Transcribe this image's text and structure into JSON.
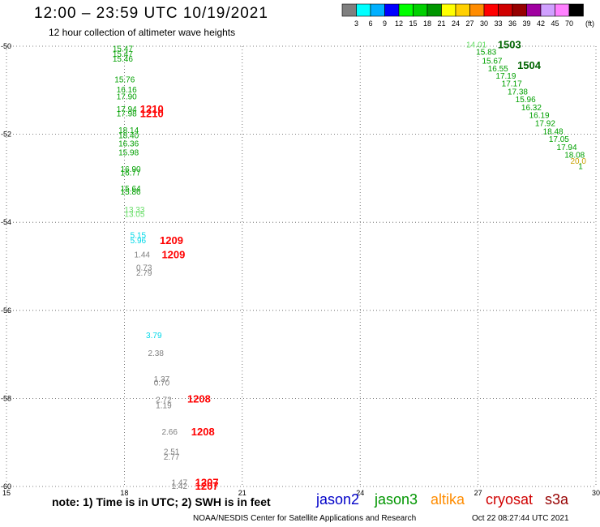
{
  "header": {
    "title": "12:00 – 23:59 UTC 10/19/2021",
    "subtitle": "12 hour collection of altimeter wave heights"
  },
  "legend": {
    "unit": "(ft)",
    "colors": [
      "#7f7f7f",
      "#00ffff",
      "#00b0ff",
      "#0000ff",
      "#00ff00",
      "#00d000",
      "#009600",
      "#ffff00",
      "#ffd000",
      "#ff8c00",
      "#ff0000",
      "#d00000",
      "#960000",
      "#a000a0",
      "#d0a0ff",
      "#ff80ff",
      "#000000"
    ],
    "labels": [
      "3",
      "6",
      "9",
      "12",
      "15",
      "18",
      "21",
      "24",
      "27",
      "30",
      "33",
      "36",
      "39",
      "42",
      "45",
      "70"
    ]
  },
  "footer": {
    "note": "note: 1) Time is in UTC; 2) SWH is in feet",
    "credit": "NOAA/NESDIS Center for Satellite Applications and Research",
    "timestamp": "Oct 22 08:27:44 UTC 2021"
  },
  "satellites": [
    {
      "name": "jason2",
      "color": "#0000c8"
    },
    {
      "name": "jason3",
      "color": "#009600"
    },
    {
      "name": "altika",
      "color": "#ff8c00"
    },
    {
      "name": "cryosat",
      "color": "#d00000"
    },
    {
      "name": "s3a",
      "color": "#960000"
    }
  ],
  "chart_data": {
    "type": "scatter",
    "xlim": [
      15,
      30
    ],
    "ylim": [
      -60,
      -50
    ],
    "x_ticks": [
      "15",
      "18",
      "21",
      "24",
      "27",
      "30"
    ],
    "y_ticks": [
      "-50",
      "-52",
      "-54",
      "-56",
      "-58",
      "-60"
    ],
    "grid": true,
    "points": [
      {
        "x": 17.7,
        "y": -50.05,
        "text": "15.47",
        "color": "#00a000"
      },
      {
        "x": 17.7,
        "y": -50.17,
        "text": "15.47",
        "color": "#00a000"
      },
      {
        "x": 17.7,
        "y": -50.28,
        "text": "15.46",
        "color": "#00a000"
      },
      {
        "x": 17.75,
        "y": -50.75,
        "text": "15.76",
        "color": "#00a000"
      },
      {
        "x": 17.8,
        "y": -50.98,
        "text": "16.16",
        "color": "#00a000"
      },
      {
        "x": 17.8,
        "y": -51.13,
        "text": "17.90",
        "color": "#00a000"
      },
      {
        "x": 17.8,
        "y": -51.42,
        "text": "17.94",
        "color": "#00a000"
      },
      {
        "x": 17.8,
        "y": -51.52,
        "text": "17.98",
        "color": "#00a000"
      },
      {
        "x": 17.85,
        "y": -51.9,
        "text": "18.14",
        "color": "#00a000"
      },
      {
        "x": 17.85,
        "y": -52.02,
        "text": "18.40",
        "color": "#00a000"
      },
      {
        "x": 17.85,
        "y": -52.2,
        "text": "16.36",
        "color": "#00a000"
      },
      {
        "x": 17.85,
        "y": -52.4,
        "text": "15.98",
        "color": "#00a000"
      },
      {
        "x": 17.9,
        "y": -52.78,
        "text": "16.90",
        "color": "#00a000"
      },
      {
        "x": 17.9,
        "y": -52.86,
        "text": "16.77",
        "color": "#00a000"
      },
      {
        "x": 17.9,
        "y": -53.22,
        "text": "15.64",
        "color": "#00a000"
      },
      {
        "x": 17.9,
        "y": -53.3,
        "text": "15.86",
        "color": "#00a000"
      },
      {
        "x": 18.0,
        "y": -53.7,
        "text": "13.33",
        "color": "#66dd66"
      },
      {
        "x": 18.0,
        "y": -53.8,
        "text": "13.05",
        "color": "#66dd66"
      },
      {
        "x": 18.15,
        "y": -54.28,
        "text": "5.15",
        "color": "#00d8e8"
      },
      {
        "x": 18.15,
        "y": -54.4,
        "text": "5.96",
        "color": "#00d8e8"
      },
      {
        "x": 18.25,
        "y": -54.72,
        "text": "1.44",
        "color": "#7f7f7f"
      },
      {
        "x": 18.3,
        "y": -55.02,
        "text": "0.73",
        "color": "#7f7f7f"
      },
      {
        "x": 18.3,
        "y": -55.14,
        "text": "2.79",
        "color": "#7f7f7f"
      },
      {
        "x": 18.55,
        "y": -56.56,
        "text": "3.79",
        "color": "#00d8e8"
      },
      {
        "x": 18.6,
        "y": -56.96,
        "text": "2.38",
        "color": "#7f7f7f"
      },
      {
        "x": 18.75,
        "y": -57.55,
        "text": "1.37",
        "color": "#7f7f7f"
      },
      {
        "x": 18.75,
        "y": -57.63,
        "text": "0.70",
        "color": "#7f7f7f"
      },
      {
        "x": 18.8,
        "y": -58.02,
        "text": "2.72",
        "color": "#7f7f7f"
      },
      {
        "x": 18.8,
        "y": -58.15,
        "text": "1.19",
        "color": "#7f7f7f"
      },
      {
        "x": 18.95,
        "y": -58.75,
        "text": "2.66",
        "color": "#7f7f7f"
      },
      {
        "x": 19.0,
        "y": -59.2,
        "text": "2.51",
        "color": "#7f7f7f"
      },
      {
        "x": 19.0,
        "y": -59.32,
        "text": "2.77",
        "color": "#7f7f7f"
      },
      {
        "x": 19.2,
        "y": -59.9,
        "text": "1.47",
        "color": "#7f7f7f"
      },
      {
        "x": 19.2,
        "y": -59.98,
        "text": "1.42",
        "color": "#7f7f7f"
      },
      {
        "x": 26.7,
        "y": -49.95,
        "text": "14.01",
        "color": "#66dd66"
      },
      {
        "x": 26.95,
        "y": -50.12,
        "text": "15.83",
        "color": "#00a000"
      },
      {
        "x": 27.1,
        "y": -50.32,
        "text": "15.67",
        "color": "#00a000"
      },
      {
        "x": 27.25,
        "y": -50.5,
        "text": "16.55",
        "color": "#00a000"
      },
      {
        "x": 27.45,
        "y": -50.66,
        "text": "17.19",
        "color": "#00a000"
      },
      {
        "x": 27.6,
        "y": -50.84,
        "text": "17.17",
        "color": "#00a000"
      },
      {
        "x": 27.75,
        "y": -51.02,
        "text": "17.38",
        "color": "#00a000"
      },
      {
        "x": 27.95,
        "y": -51.2,
        "text": "15.96",
        "color": "#00a000"
      },
      {
        "x": 28.1,
        "y": -51.38,
        "text": "16.32",
        "color": "#00a000"
      },
      {
        "x": 28.3,
        "y": -51.56,
        "text": "16.19",
        "color": "#00a000"
      },
      {
        "x": 28.45,
        "y": -51.74,
        "text": "17.92",
        "color": "#00a000"
      },
      {
        "x": 28.65,
        "y": -51.92,
        "text": "18.48",
        "color": "#00a000"
      },
      {
        "x": 28.8,
        "y": -52.1,
        "text": "17.05",
        "color": "#00a000"
      },
      {
        "x": 29.0,
        "y": -52.28,
        "text": "17.94",
        "color": "#00a000"
      },
      {
        "x": 29.2,
        "y": -52.46,
        "text": "18.08",
        "color": "#00a000"
      },
      {
        "x": 29.35,
        "y": -52.6,
        "text": "20.0",
        "color": "#c8a000"
      },
      {
        "x": 29.55,
        "y": -52.72,
        "text": "1",
        "color": "#00a000"
      }
    ],
    "annotations": [
      {
        "x": 18.4,
        "y": -51.42,
        "text": "1210",
        "color": "#ff0000"
      },
      {
        "x": 18.4,
        "y": -51.52,
        "text": "1210",
        "color": "#ff0000"
      },
      {
        "x": 18.9,
        "y": -54.4,
        "text": "1209",
        "color": "#ff0000"
      },
      {
        "x": 18.95,
        "y": -54.72,
        "text": "1209",
        "color": "#ff0000"
      },
      {
        "x": 19.6,
        "y": -58.0,
        "text": "1208",
        "color": "#ff0000"
      },
      {
        "x": 19.7,
        "y": -58.75,
        "text": "1208",
        "color": "#ff0000"
      },
      {
        "x": 19.8,
        "y": -59.9,
        "text": "1207",
        "color": "#ff0000"
      },
      {
        "x": 19.8,
        "y": -59.98,
        "text": "1207",
        "color": "#ff0000"
      },
      {
        "x": 27.5,
        "y": -49.95,
        "text": "1503",
        "color": "#006400"
      },
      {
        "x": 28.0,
        "y": -50.42,
        "text": "1504",
        "color": "#006400"
      }
    ]
  }
}
